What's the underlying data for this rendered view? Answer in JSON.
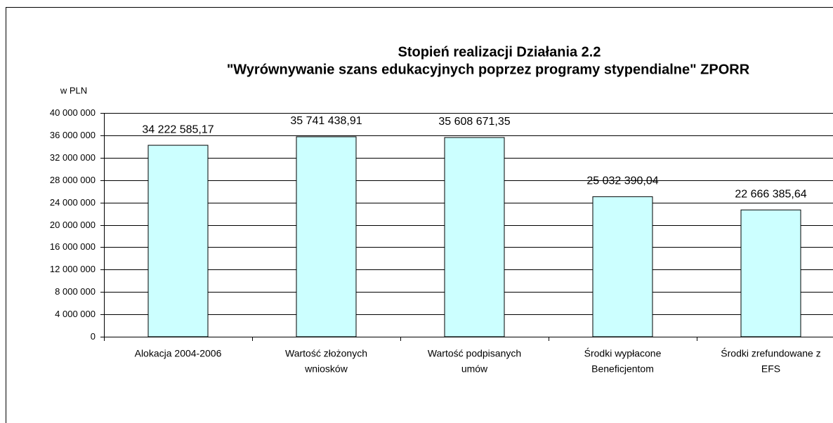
{
  "chart_data": {
    "type": "bar",
    "title": [
      "Stopień realizacji Działania 2.2",
      "\"Wyrównywanie szans edukacyjnych poprzez programy stypendialne\"   ZPORR"
    ],
    "ylabel": "w PLN",
    "categories": [
      [
        "Alokacja 2004-2006"
      ],
      [
        "Wartość złożonych",
        "wniosków"
      ],
      [
        "Wartość podpisanych",
        "umów"
      ],
      [
        "Środki wypłacone",
        "Beneficjentom"
      ],
      [
        "Środki zrefundowane z",
        "EFS"
      ]
    ],
    "values": [
      34222585.17,
      35741438.91,
      35608671.35,
      25032390.04,
      22666385.64
    ],
    "value_labels": [
      "34 222 585,17",
      "35 741 438,91",
      "35 608 671,35",
      "25 032 390,04",
      "22 666 385,64"
    ],
    "color": "#ccffff",
    "ylim": [
      0,
      40000000
    ],
    "yticks": [
      0,
      {
        "value": 4000000,
        "label": "4 000 000"
      },
      {
        "value": 8000000,
        "label": "8 000 000"
      },
      {
        "value": 12000000,
        "label": "12 000 000"
      },
      {
        "value": 16000000,
        "label": "16 000 000"
      },
      {
        "value": 20000000,
        "label": "20 000 000"
      },
      {
        "value": 24000000,
        "label": "24 000 000"
      },
      {
        "value": 28000000,
        "label": "28 000 000"
      },
      {
        "value": 32000000,
        "label": "32 000 000"
      },
      {
        "value": 36000000,
        "label": "36 000 000"
      },
      {
        "value": 40000000,
        "label": "40 000 000"
      }
    ],
    "grid": true
  }
}
